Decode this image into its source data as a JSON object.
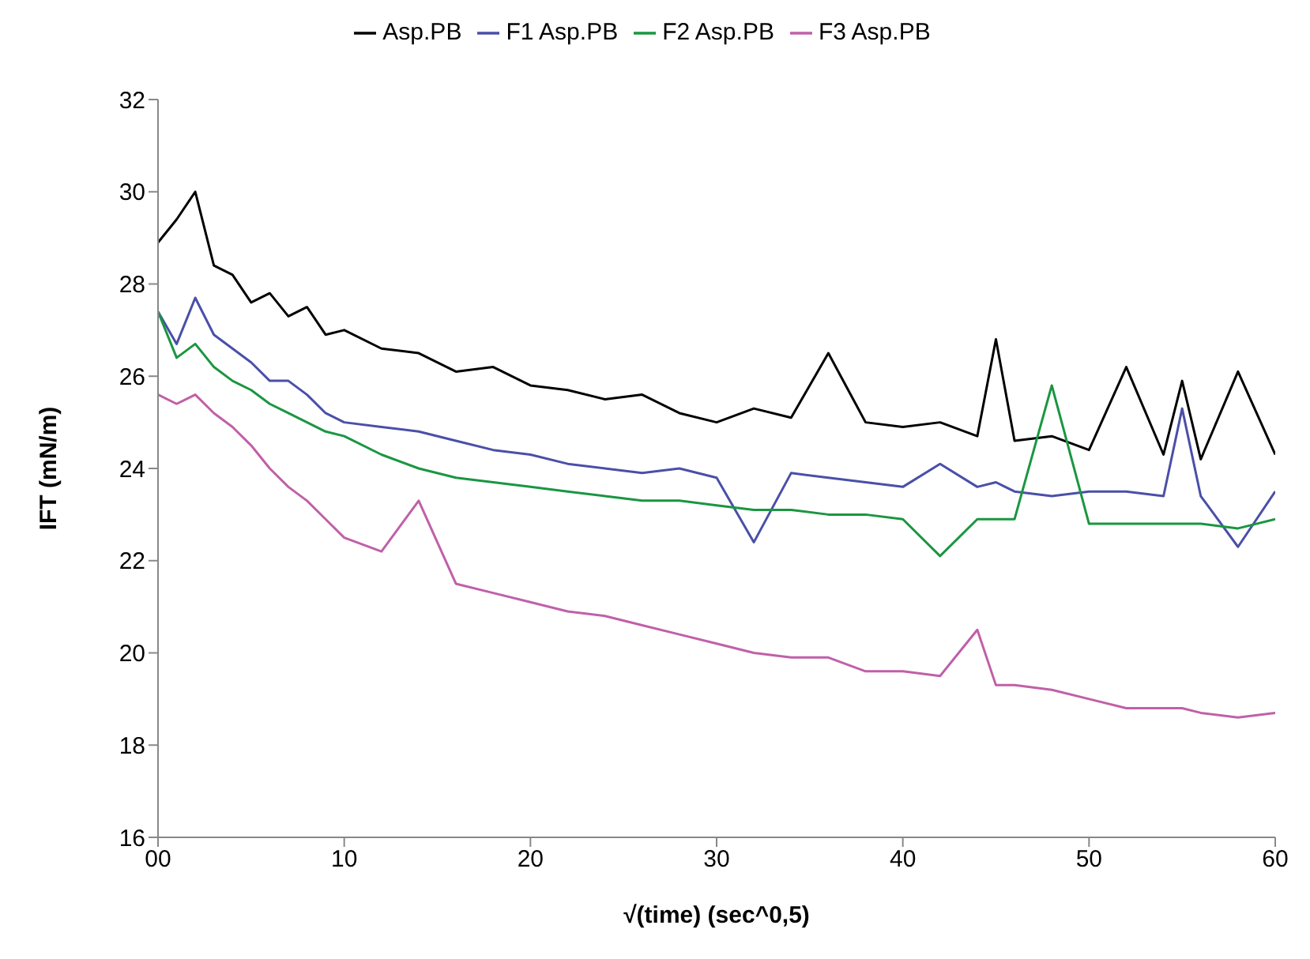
{
  "chart_data": {
    "type": "line",
    "xlabel": "√(time) (sec^0,5)",
    "ylabel": "IFT (mN/m)",
    "x": [
      0,
      1,
      2,
      3,
      4,
      5,
      6,
      7,
      8,
      9,
      10,
      12,
      14,
      16,
      18,
      20,
      22,
      24,
      26,
      28,
      30,
      32,
      34,
      36,
      38,
      40,
      42,
      44,
      45,
      46,
      48,
      50,
      52,
      54,
      55,
      56,
      58,
      60
    ],
    "series": [
      {
        "name": "Asp.PB",
        "color": "#000000",
        "values": [
          28.9,
          29.4,
          30.0,
          28.4,
          28.2,
          27.6,
          27.8,
          27.3,
          27.5,
          26.9,
          27.0,
          26.6,
          26.5,
          26.1,
          26.2,
          25.8,
          25.7,
          25.5,
          25.6,
          25.2,
          25.0,
          25.3,
          25.1,
          26.5,
          25.0,
          24.9,
          25.0,
          24.7,
          26.8,
          24.6,
          24.7,
          24.4,
          26.2,
          24.3,
          25.9,
          24.2,
          26.1,
          24.3
        ]
      },
      {
        "name": "F1 Asp.PB",
        "color": "#4a4fa8",
        "values": [
          27.4,
          26.7,
          27.7,
          26.9,
          26.6,
          26.3,
          25.9,
          25.9,
          25.6,
          25.2,
          25.0,
          24.9,
          24.8,
          24.6,
          24.4,
          24.3,
          24.1,
          24.0,
          23.9,
          24.0,
          23.8,
          22.4,
          23.9,
          23.8,
          23.7,
          23.6,
          24.1,
          23.6,
          23.7,
          23.5,
          23.4,
          23.5,
          23.5,
          23.4,
          25.3,
          23.4,
          22.3,
          23.5
        ]
      },
      {
        "name": "F2 Asp.PB",
        "color": "#1a9641",
        "values": [
          27.4,
          26.4,
          26.7,
          26.2,
          25.9,
          25.7,
          25.4,
          25.2,
          25.0,
          24.8,
          24.7,
          24.3,
          24.0,
          23.8,
          23.7,
          23.6,
          23.5,
          23.4,
          23.3,
          23.3,
          23.2,
          23.1,
          23.1,
          23.0,
          23.0,
          22.9,
          22.1,
          22.9,
          22.9,
          22.9,
          25.8,
          22.8,
          22.8,
          22.8,
          22.8,
          22.8,
          22.7,
          22.9
        ]
      },
      {
        "name": "F3 Asp.PB",
        "color": "#c060a8",
        "values": [
          25.6,
          25.4,
          25.6,
          25.2,
          24.9,
          24.5,
          24.0,
          23.6,
          23.3,
          22.9,
          22.5,
          22.2,
          23.3,
          21.5,
          21.3,
          21.1,
          20.9,
          20.8,
          20.6,
          20.4,
          20.2,
          20.0,
          19.9,
          19.9,
          19.6,
          19.6,
          19.5,
          20.5,
          19.3,
          19.3,
          19.2,
          19.0,
          18.8,
          18.8,
          18.8,
          18.7,
          18.6,
          18.7
        ]
      }
    ],
    "xlim": [
      0,
      60
    ],
    "xticks": [
      {
        "value": 0,
        "label": "00"
      },
      10,
      20,
      30,
      40,
      50,
      60
    ],
    "ylim": [
      16,
      32
    ],
    "yticks": [
      16,
      18,
      20,
      22,
      24,
      26,
      28,
      30,
      32
    ],
    "legend": "top",
    "grid": false
  }
}
